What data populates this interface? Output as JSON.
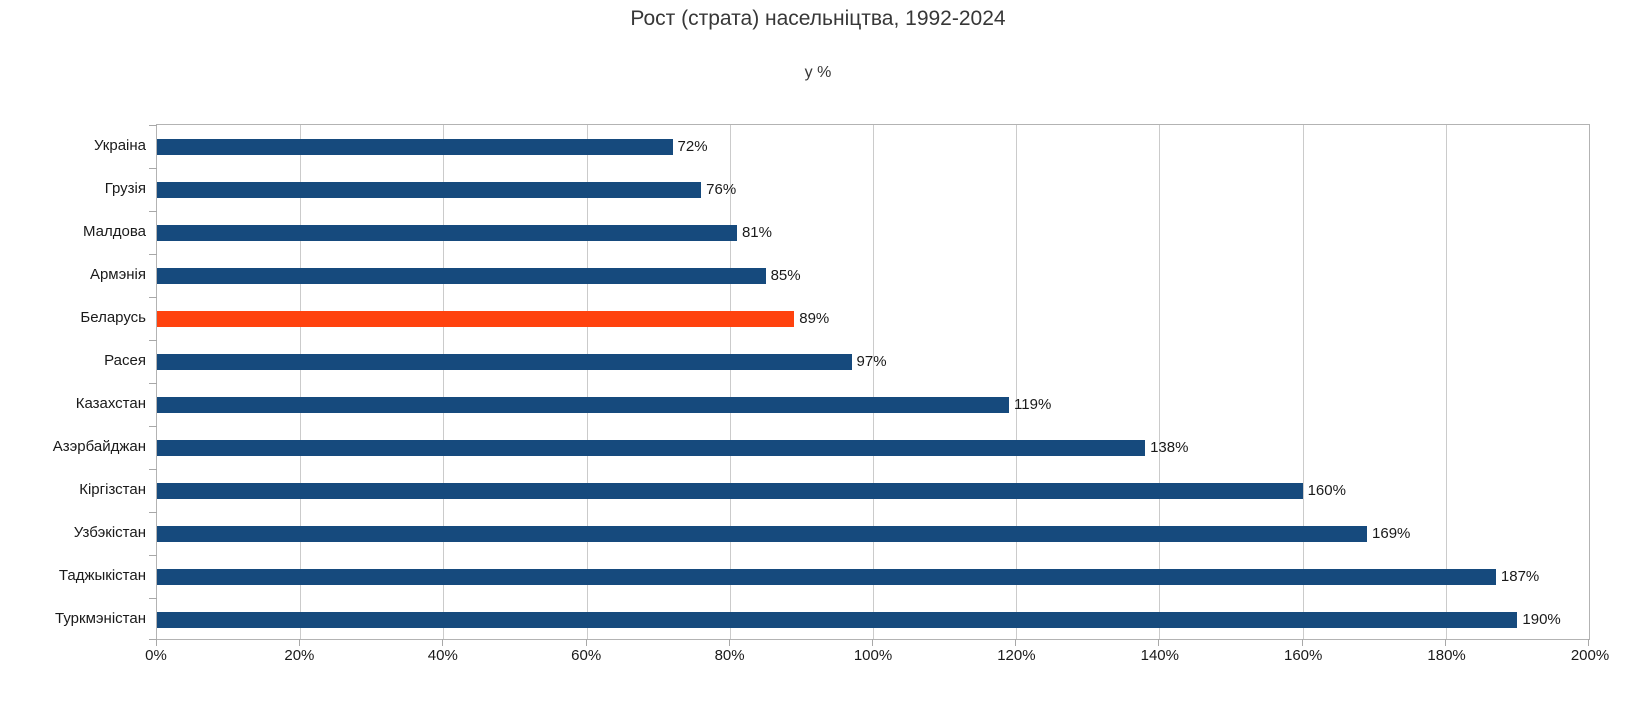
{
  "chart_data": {
    "type": "bar",
    "orientation": "horizontal",
    "title": "Рост (страта) насельніцтва, 1992-2024",
    "subtitle": "у %",
    "categories": [
      "Украіна",
      "Грузія",
      "Малдова",
      "Армэнія",
      "Беларусь",
      "Расея",
      "Казахстан",
      "Азэрбайджан",
      "Кіргізстан",
      "Узбэкістан",
      "Таджыкістан",
      "Туркмэністан"
    ],
    "values": [
      72,
      76,
      81,
      85,
      89,
      97,
      119,
      138,
      160,
      169,
      187,
      190
    ],
    "data_labels": [
      "72%",
      "76%",
      "81%",
      "85%",
      "89%",
      "97%",
      "119%",
      "138%",
      "160%",
      "169%",
      "187%",
      "190%"
    ],
    "highlight_category": "Беларусь",
    "highlight_index": 4,
    "xlim": [
      0,
      200
    ],
    "x_tick_step": 20,
    "x_tick_labels": [
      "0%",
      "20%",
      "40%",
      "60%",
      "80%",
      "100%",
      "120%",
      "140%",
      "160%",
      "180%",
      "200%"
    ],
    "grid": "vertical",
    "legend": "none",
    "colors": {
      "bar": "#164A7D",
      "highlight": "#FF420E",
      "gridline": "#CBCBCB",
      "axis": "#A8A8A8",
      "text": "#1A1A1A",
      "title": "#373737"
    }
  }
}
